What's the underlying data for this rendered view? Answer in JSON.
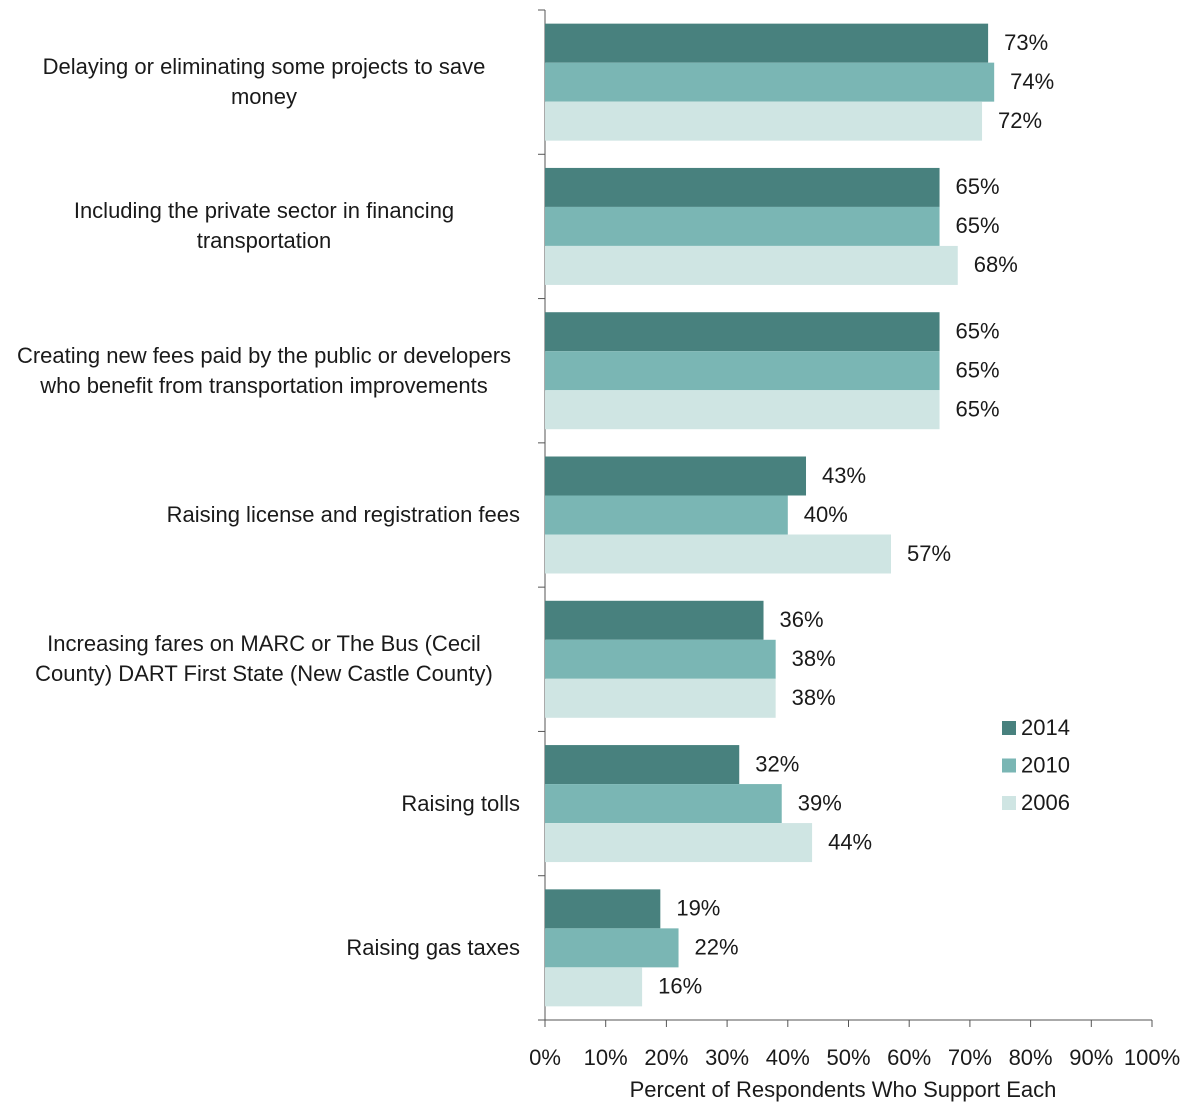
{
  "chart_data": {
    "type": "bar",
    "orientation": "horizontal",
    "categories": [
      "Delaying or eliminating some projects to save money",
      "Including the private sector in financing transportation",
      "Creating new fees paid by the public or developers who benefit from transportation improvements",
      "Raising license and registration fees",
      "Increasing fares on MARC or The Bus (Cecil County) DART First State (New Castle County)",
      "Raising tolls",
      "Raising gas taxes"
    ],
    "series": [
      {
        "name": "2014",
        "color": "#48817e",
        "values": [
          73,
          65,
          65,
          43,
          36,
          32,
          19
        ],
        "value_labels": [
          "73%",
          "65%",
          "65%",
          "43%",
          "36%",
          "32%",
          "19%"
        ]
      },
      {
        "name": "2010",
        "color": "#7ab6b4",
        "values": [
          74,
          65,
          65,
          40,
          38,
          39,
          22
        ],
        "value_labels": [
          "74%",
          "65%",
          "65%",
          "40%",
          "38%",
          "39%",
          "22%"
        ]
      },
      {
        "name": "2006",
        "color": "#cfe5e3",
        "values": [
          72,
          68,
          65,
          57,
          38,
          44,
          16
        ],
        "value_labels": [
          "72%",
          "68%",
          "65%",
          "57%",
          "38%",
          "44%",
          "16%"
        ]
      }
    ],
    "xlabel": "Percent of Respondents Who Support Each",
    "xlim": [
      0,
      100
    ],
    "xticks": [
      {
        "value": 0,
        "label": "0%"
      },
      {
        "value": 10,
        "label": "10%"
      },
      {
        "value": 20,
        "label": "20%"
      },
      {
        "value": 30,
        "label": "30%"
      },
      {
        "value": 40,
        "label": "40%"
      },
      {
        "value": 50,
        "label": "50%"
      },
      {
        "value": 60,
        "label": "60%"
      },
      {
        "value": 70,
        "label": "70%"
      },
      {
        "value": 80,
        "label": "80%"
      },
      {
        "value": 90,
        "label": "90%"
      },
      {
        "value": 100,
        "label": "100%"
      }
    ],
    "legend": "right"
  }
}
